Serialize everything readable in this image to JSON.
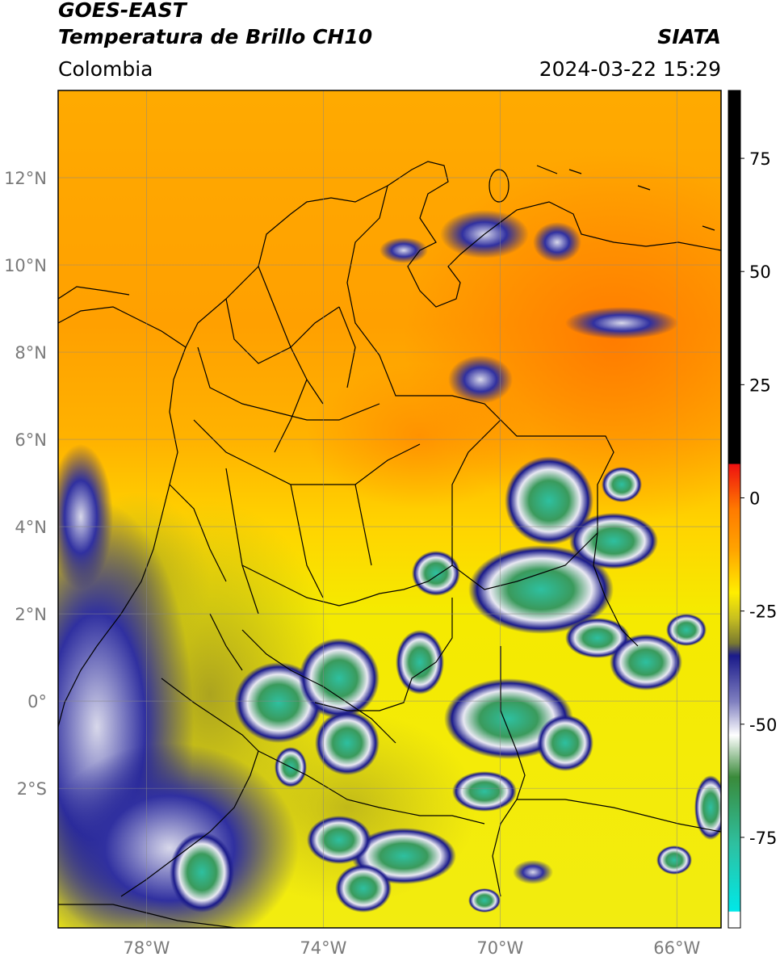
{
  "header": {
    "satellite": "GOES-EAST",
    "product": "Temperatura de Brillo CH10",
    "organization": "SIATA",
    "region": "Colombia",
    "timestamp": "2024-03-22 15:29"
  },
  "map": {
    "lon_range": [
      -80.0,
      -65.0
    ],
    "lat_range": [
      -5.2,
      14.0
    ],
    "lon_ticks": [
      {
        "value": -78,
        "label": "78°W"
      },
      {
        "value": -74,
        "label": "74°W"
      },
      {
        "value": -70,
        "label": "70°W"
      },
      {
        "value": -66,
        "label": "66°W"
      }
    ],
    "lat_ticks": [
      {
        "value": 12,
        "label": "12°N"
      },
      {
        "value": 10,
        "label": "10°N"
      },
      {
        "value": 8,
        "label": "8°N"
      },
      {
        "value": 6,
        "label": "6°N"
      },
      {
        "value": 4,
        "label": "4°N"
      },
      {
        "value": 2,
        "label": "2°N"
      },
      {
        "value": 0,
        "label": "0°"
      },
      {
        "value": -2,
        "label": "2°S"
      }
    ],
    "grid": true,
    "colors": {
      "warm_orange": "#ff8c00",
      "orange": "#ffa500",
      "yellow": "#ffee00",
      "olive": "#b8b020",
      "navy": "#1a1a8a",
      "cloud_white": "#e8e8f2",
      "green": "#3a8a3a",
      "teal": "#2ec0a8"
    }
  },
  "colorbar": {
    "range": [
      -95,
      90
    ],
    "ticks": [
      {
        "value": 75,
        "label": "75"
      },
      {
        "value": 50,
        "label": "50"
      },
      {
        "value": 25,
        "label": "25"
      },
      {
        "value": 0,
        "label": "0"
      },
      {
        "value": -25,
        "label": "-25"
      },
      {
        "value": -50,
        "label": "-50"
      },
      {
        "value": -75,
        "label": "-75"
      }
    ]
  }
}
